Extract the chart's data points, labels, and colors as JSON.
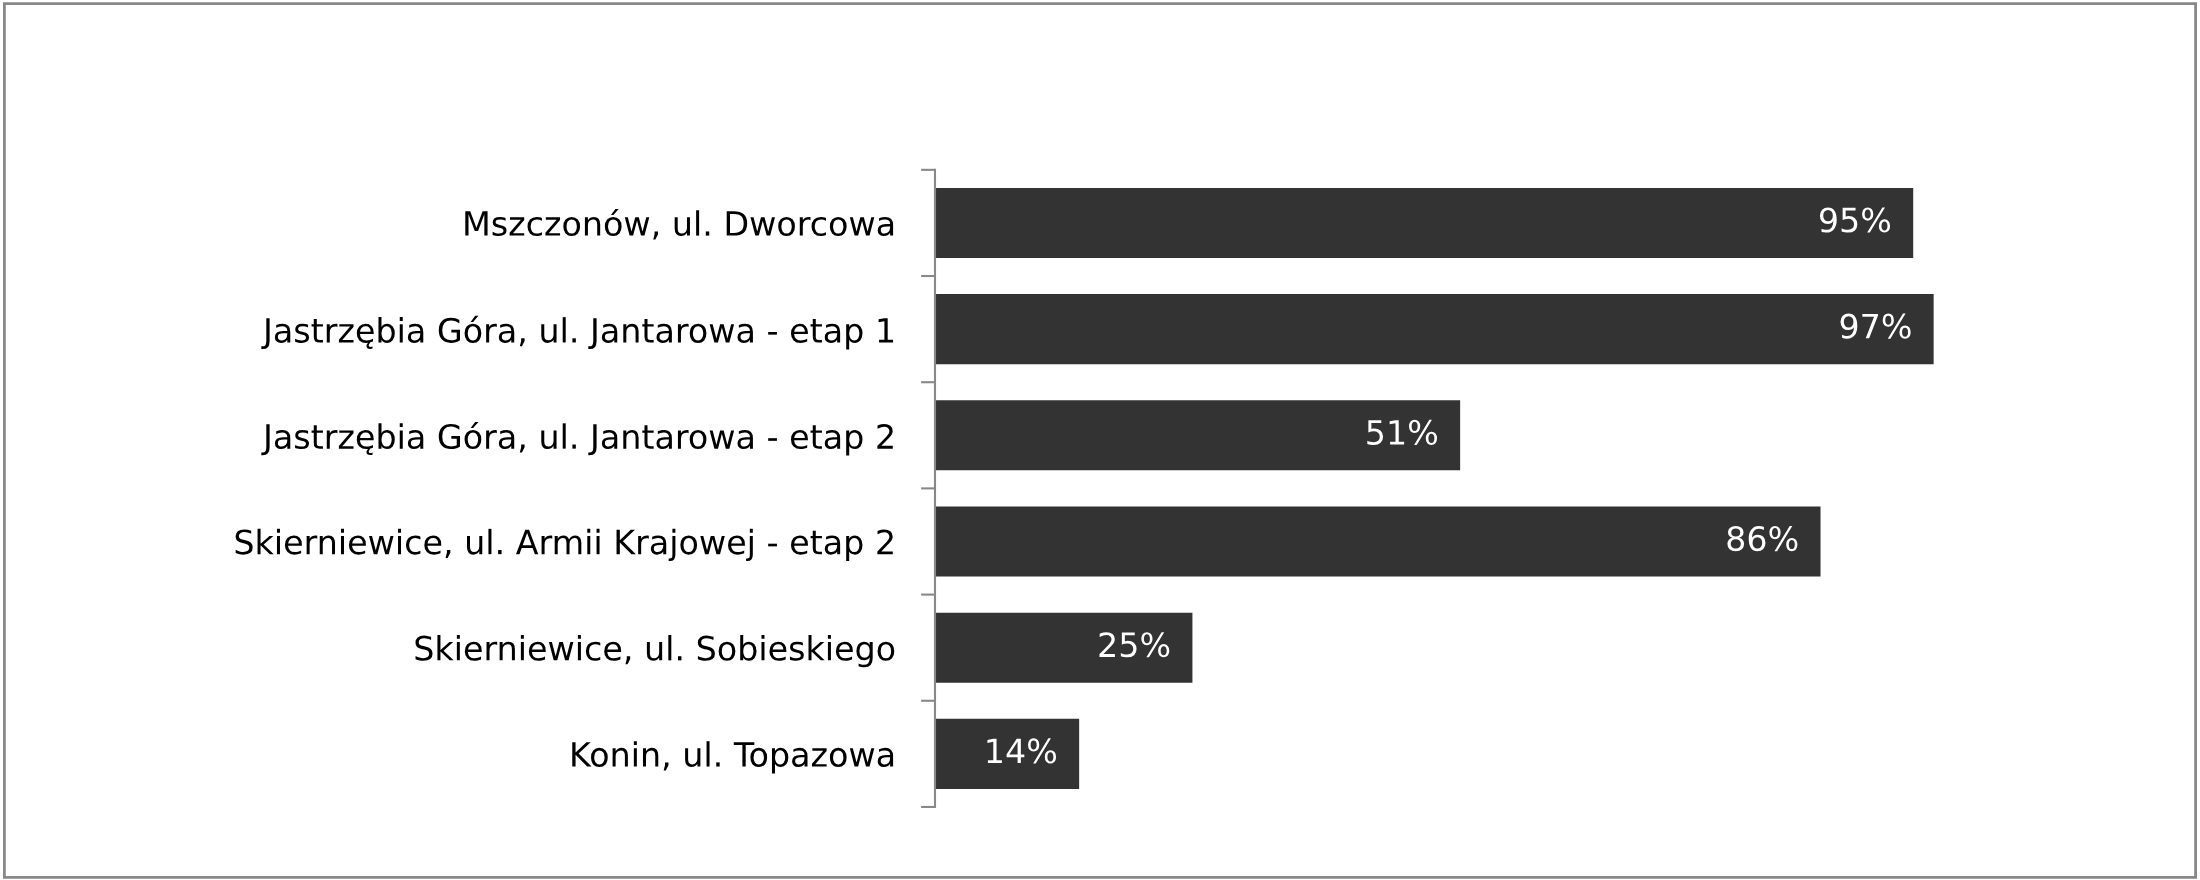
{
  "chart_data": {
    "type": "bar",
    "orientation": "horizontal",
    "categories": [
      "Mszczonów, ul. Dworcowa",
      "Jastrzębia Góra, ul. Jantarowa - etap 1",
      "Jastrzębia Góra, ul. Jantarowa - etap 2",
      "Skierniewice, ul. Armii Krajowej - etap 2",
      "Skierniewice, ul. Sobieskiego",
      "Konin, ul. Topazowa"
    ],
    "values": [
      95,
      97,
      51,
      86,
      25,
      14
    ],
    "value_labels": [
      "95%",
      "97%",
      "51%",
      "86%",
      "25%",
      "14%"
    ],
    "color": "#333333",
    "grid": false,
    "legend": false,
    "tick_labels": "y"
  }
}
